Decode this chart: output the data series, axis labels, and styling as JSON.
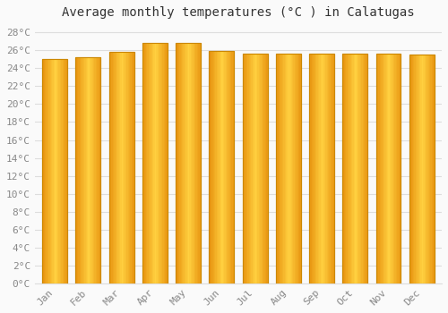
{
  "title": "Average monthly temperatures (°C ) in Calatugas",
  "months": [
    "Jan",
    "Feb",
    "Mar",
    "Apr",
    "May",
    "Jun",
    "Jul",
    "Aug",
    "Sep",
    "Oct",
    "Nov",
    "Dec"
  ],
  "temperatures": [
    25.0,
    25.2,
    25.8,
    26.8,
    26.8,
    25.9,
    25.6,
    25.6,
    25.6,
    25.6,
    25.6,
    25.5
  ],
  "ylim": [
    0,
    29
  ],
  "yticks": [
    0,
    2,
    4,
    6,
    8,
    10,
    12,
    14,
    16,
    18,
    20,
    22,
    24,
    26,
    28
  ],
  "bar_color_main": "#FFA500",
  "bar_color_light": "#FFD060",
  "bar_color_dark": "#E08000",
  "bar_edge_color": "#CC8800",
  "background_color": "#FAFAFA",
  "grid_color": "#DDDDDD",
  "title_fontsize": 10,
  "tick_fontsize": 8,
  "title_color": "#333333",
  "tick_color": "#888888",
  "bar_width": 0.75
}
